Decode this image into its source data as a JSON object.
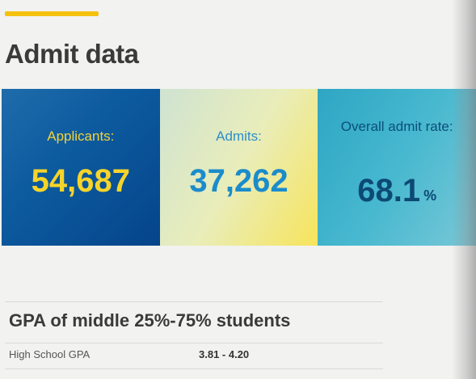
{
  "section": {
    "title": "Admit data"
  },
  "stats": [
    {
      "label": "Applicants:",
      "value": "54,687"
    },
    {
      "label": "Admits:",
      "value": "37,262"
    },
    {
      "label": "Overall admit rate:",
      "value": "68.1",
      "unit": "%"
    }
  ],
  "gpa": {
    "title": "GPA of middle 25%-75% students",
    "rows": [
      {
        "label": "High School GPA",
        "value": "3.81 - 4.20"
      }
    ]
  },
  "colors": {
    "accent": "#f4c10f",
    "applicants_bg": "#0d5b9f",
    "applicants_text": "#f5d42a",
    "admits_bg": "#e9edba",
    "admits_text": "#1b8ccb",
    "rate_bg": "#47b8cf",
    "rate_text": "#0c4a74"
  }
}
